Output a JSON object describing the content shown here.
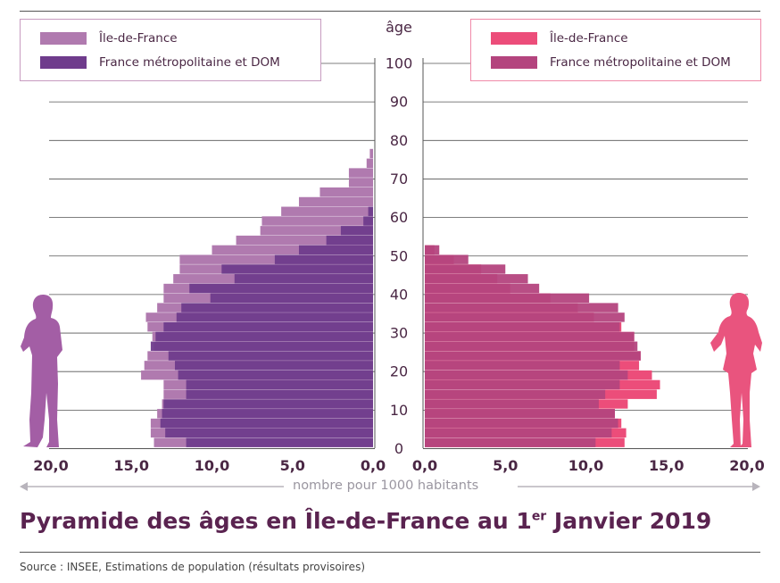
{
  "title_main": "Pyramide des âges en Île-de-France au 1",
  "title_sup": "er",
  "title_end": " Janvier 2019",
  "source": "Source : INSEE, Estimations de population (résultats provisoires)",
  "age_label": "âge",
  "xaxis_caption": "nombre pour 1000 habitants",
  "colors": {
    "men_idf": "#b07aaf",
    "men_fr": "#6f3c8c",
    "women_idf": "#ec4d7a",
    "women_fr": "#b4447e",
    "grid": "#555555",
    "silhouette_men": "#a35ea5",
    "silhouette_women": "#e9547e"
  },
  "legend_left": {
    "items": [
      {
        "label": "Île-de-France",
        "color": "#b07aaf"
      },
      {
        "label": "France métropolitaine et DOM",
        "color": "#6f3c8c"
      }
    ]
  },
  "legend_right": {
    "items": [
      {
        "label": "Île-de-France",
        "color": "#ec4d7a"
      },
      {
        "label": "France métropolitaine et DOM",
        "color": "#b4447e"
      }
    ]
  },
  "chart_data": {
    "type": "bar",
    "orientation": "horizontal",
    "subtype": "population pyramid",
    "age_groups": [
      "0",
      "2.5",
      "5",
      "7.5",
      "10",
      "12.5",
      "15",
      "17.5",
      "20",
      "22.5",
      "25",
      "27.5",
      "30",
      "32.5",
      "35",
      "37.5",
      "40",
      "42.5",
      "45",
      "47.5",
      "50",
      "52.5",
      "55",
      "57.5",
      "60",
      "62.5",
      "65",
      "67.5",
      "70",
      "72.5",
      "75",
      "77.5",
      "80",
      "82.5",
      "85",
      "87.5",
      "90",
      "92.5",
      "95",
      "97.5",
      "100"
    ],
    "age_ticks": [
      0,
      10,
      20,
      30,
      40,
      50,
      60,
      70,
      80,
      90,
      100
    ],
    "x_ticks_left": [
      "20,0",
      "15,0",
      "10,0",
      "5,0",
      "0,0"
    ],
    "x_ticks_right": [
      "0,0",
      "5,0",
      "10,0",
      "15,0",
      "20,0"
    ],
    "xlim": [
      0,
      20
    ],
    "ylim": [
      0,
      100
    ],
    "series": [
      {
        "name": "Île-de-France",
        "side": "left",
        "values": [
          13.6,
          13.8,
          13.8,
          13.4,
          13.1,
          13.0,
          13.0,
          14.4,
          14.2,
          14.0,
          13.6,
          13.7,
          14.0,
          14.1,
          13.4,
          13.0,
          13.0,
          12.4,
          12.0,
          12.0,
          10.0,
          8.5,
          7.0,
          6.9,
          5.7,
          4.6,
          3.3,
          1.5,
          1.5,
          0.4,
          0.2
        ],
        "values_ages": [
          0.5,
          3,
          5.5,
          8,
          10.5,
          13,
          15.5,
          18,
          20.5,
          23,
          25.5,
          28,
          30.5,
          33,
          35.5,
          38,
          40.5,
          43,
          45.5,
          48,
          50.5,
          53,
          55.5,
          58,
          60.5,
          63,
          65.5,
          68,
          70.5,
          73,
          75.5
        ]
      },
      {
        "name": "France métropolitaine et DOM",
        "side": "left",
        "values": [
          11.6,
          12.9,
          13.2,
          13.1,
          13.0,
          11.6,
          11.6,
          12.1,
          12.3,
          12.7,
          13.8,
          13.5,
          13.0,
          12.2,
          11.9,
          10.1,
          11.4,
          8.6,
          9.4,
          6.1,
          4.6,
          2.9,
          2.0,
          0.6,
          0.3
        ],
        "values_ages": [
          0.5,
          3,
          5.5,
          8,
          10.5,
          13,
          15.5,
          18,
          20.5,
          23,
          25.5,
          28,
          30.5,
          33,
          35.5,
          38,
          40.5,
          43,
          45.5,
          48,
          50.5,
          53,
          55.5,
          58,
          60.5
        ]
      },
      {
        "name": "Île-de-France",
        "side": "right",
        "values": [
          12.4,
          12.5,
          12.2,
          11.8,
          12.6,
          14.4,
          14.6,
          14.1,
          13.3,
          13.4,
          13.0,
          13.0,
          12.2,
          10.5,
          9.5,
          7.8,
          5.3,
          4.5,
          3.5,
          1.8,
          0.6
        ],
        "values_ages": [
          0.5,
          3,
          5.5,
          8,
          10.5,
          13,
          15.5,
          18,
          20.5,
          23,
          25.5,
          28,
          30.5,
          33,
          35.5,
          38,
          40.5,
          43,
          45.5,
          48,
          50.5
        ]
      },
      {
        "name": "France métropolitaine et DOM",
        "side": "right",
        "values": [
          10.6,
          11.6,
          12.0,
          11.8,
          10.8,
          11.2,
          12.1,
          12.6,
          12.1,
          13.4,
          13.2,
          13.0,
          12.1,
          12.4,
          12.0,
          10.2,
          7.1,
          6.4,
          5.0,
          2.7,
          0.9
        ],
        "values_ages": [
          0.5,
          3,
          5.5,
          8,
          10.5,
          13,
          15.5,
          18,
          20.5,
          23,
          25.5,
          28,
          30.5,
          33,
          35.5,
          38,
          40.5,
          43,
          45.5,
          48,
          50.5
        ]
      }
    ]
  }
}
